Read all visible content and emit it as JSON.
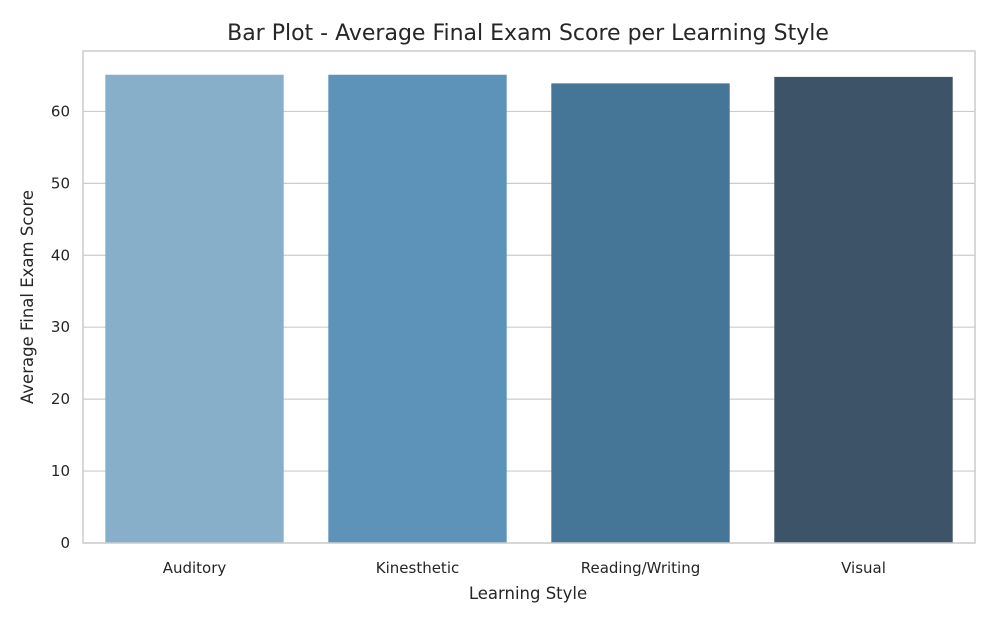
{
  "chart_data": {
    "type": "bar",
    "title": "Bar Plot - Average Final Exam Score per Learning Style",
    "xlabel": "Learning Style",
    "ylabel": "Average Final Exam Score",
    "categories": [
      "Auditory",
      "Kinesthetic",
      "Reading/Writing",
      "Visual"
    ],
    "values": [
      65.1,
      65.1,
      63.9,
      64.8
    ],
    "ylim": [
      0,
      68.4
    ],
    "yticks": [
      0,
      10,
      20,
      30,
      40,
      50,
      60
    ],
    "grid": true,
    "colors": [
      "#88afca",
      "#5d93b9",
      "#457597",
      "#3d5368"
    ]
  }
}
